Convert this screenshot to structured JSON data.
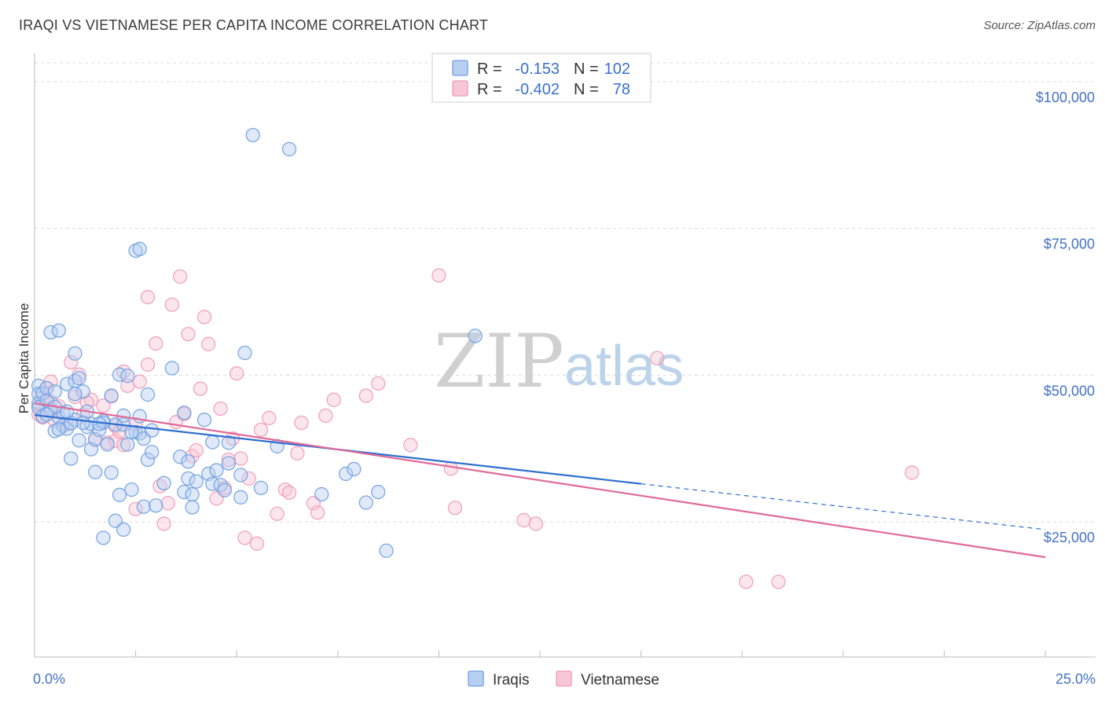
{
  "title": "IRAQI VS VIETNAMESE PER CAPITA INCOME CORRELATION CHART",
  "source": "Source: ZipAtlas.com",
  "watermark": {
    "zip": "ZIP",
    "atlas": "atlas"
  },
  "colors": {
    "iraqis": "#6fa0e0",
    "iraqis_fill": "#b7cff1",
    "iraqis_line": "#2f6fd0",
    "vietnamese": "#ef9ab8",
    "vietnamese_fill": "#f7c7d7",
    "vietnamese_line": "#e06a97",
    "grid": "#dcdcdc",
    "axis_label": "#4472c4"
  },
  "legend": {
    "rows": [
      {
        "r_label": "R =",
        "r_value": "-0.153",
        "n_label": "N =",
        "n_value": "102"
      },
      {
        "r_label": "R =",
        "r_value": "-0.402",
        "n_label": "N =",
        "n_value": "78"
      }
    ]
  },
  "chart_data": {
    "type": "scatter",
    "title": "IRAQI VS VIETNAMESE PER CAPITA INCOME CORRELATION CHART",
    "xlabel": "",
    "ylabel": "Per Capita Income",
    "xlim": [
      0,
      25
    ],
    "ylim": [
      2000,
      104000
    ],
    "x_tick_labels": {
      "min": "0.0%",
      "max": "25.0%"
    },
    "y_ticks": [
      {
        "value": 25000,
        "label": "$25,000"
      },
      {
        "value": 50000,
        "label": "$50,000"
      },
      {
        "value": 75000,
        "label": "$75,000"
      },
      {
        "value": 100000,
        "label": "$100,000"
      }
    ],
    "grid": true,
    "series": [
      {
        "name": "Iraqis",
        "trend": {
          "x0": 0,
          "y0": 43200,
          "x1": 15,
          "y1": 31500,
          "dash_to_x": 25,
          "dash_to_y": 23700
        },
        "points": [
          [
            0.1,
            48200
          ],
          [
            0.1,
            46800
          ],
          [
            0.1,
            45200
          ],
          [
            0.1,
            44500
          ],
          [
            0.2,
            46900
          ],
          [
            0.2,
            43000
          ],
          [
            0.3,
            45700
          ],
          [
            0.3,
            47800
          ],
          [
            0.4,
            44100
          ],
          [
            0.4,
            57300
          ],
          [
            0.5,
            47200
          ],
          [
            0.5,
            40500
          ],
          [
            0.6,
            57600
          ],
          [
            0.6,
            42800
          ],
          [
            0.7,
            43600
          ],
          [
            0.7,
            41400
          ],
          [
            0.8,
            40900
          ],
          [
            0.8,
            48500
          ],
          [
            0.9,
            35800
          ],
          [
            1.0,
            53700
          ],
          [
            1.0,
            42400
          ],
          [
            1.0,
            49000
          ],
          [
            1.1,
            49500
          ],
          [
            1.1,
            38900
          ],
          [
            1.2,
            47200
          ],
          [
            1.3,
            41200
          ],
          [
            1.3,
            43800
          ],
          [
            1.4,
            41700
          ],
          [
            1.4,
            37400
          ],
          [
            1.5,
            33500
          ],
          [
            1.5,
            39100
          ],
          [
            1.6,
            40700
          ],
          [
            1.7,
            42200
          ],
          [
            1.7,
            22300
          ],
          [
            1.7,
            41900
          ],
          [
            1.8,
            38200
          ],
          [
            1.9,
            46500
          ],
          [
            1.9,
            33400
          ],
          [
            2.0,
            41600
          ],
          [
            2.0,
            25200
          ],
          [
            2.1,
            29600
          ],
          [
            2.1,
            50100
          ],
          [
            2.2,
            41600
          ],
          [
            2.2,
            43100
          ],
          [
            2.2,
            23700
          ],
          [
            2.3,
            49900
          ],
          [
            2.3,
            38200
          ],
          [
            2.4,
            30500
          ],
          [
            2.5,
            71200
          ],
          [
            2.5,
            40300
          ],
          [
            2.6,
            71500
          ],
          [
            2.6,
            40100
          ],
          [
            2.6,
            43000
          ],
          [
            2.7,
            39200
          ],
          [
            2.7,
            27600
          ],
          [
            2.8,
            46700
          ],
          [
            2.8,
            35600
          ],
          [
            2.9,
            40600
          ],
          [
            2.9,
            36900
          ],
          [
            3.0,
            27800
          ],
          [
            3.2,
            31600
          ],
          [
            3.4,
            51200
          ],
          [
            3.6,
            36100
          ],
          [
            3.7,
            30100
          ],
          [
            3.7,
            43600
          ],
          [
            3.8,
            32400
          ],
          [
            3.8,
            35300
          ],
          [
            3.9,
            29700
          ],
          [
            3.9,
            27500
          ],
          [
            4.0,
            31900
          ],
          [
            4.2,
            42400
          ],
          [
            4.3,
            33200
          ],
          [
            4.4,
            31500
          ],
          [
            4.4,
            38600
          ],
          [
            4.5,
            33800
          ],
          [
            4.6,
            31300
          ],
          [
            4.7,
            30400
          ],
          [
            4.8,
            38500
          ],
          [
            4.8,
            35000
          ],
          [
            5.1,
            29200
          ],
          [
            5.1,
            33000
          ],
          [
            5.2,
            53800
          ],
          [
            5.4,
            90900
          ],
          [
            5.6,
            30800
          ],
          [
            6.0,
            37900
          ],
          [
            6.3,
            88500
          ],
          [
            7.1,
            29700
          ],
          [
            7.7,
            33200
          ],
          [
            7.9,
            34000
          ],
          [
            8.2,
            28300
          ],
          [
            8.5,
            30100
          ],
          [
            8.7,
            20100
          ],
          [
            10.9,
            56700
          ],
          [
            1.0,
            46800
          ],
          [
            0.5,
            44600
          ],
          [
            0.6,
            40800
          ],
          [
            2.4,
            40300
          ],
          [
            1.2,
            41900
          ],
          [
            0.9,
            41800
          ],
          [
            1.6,
            41700
          ],
          [
            0.3,
            43300
          ],
          [
            0.8,
            43800
          ]
        ]
      },
      {
        "name": "Vietnamese",
        "trend": {
          "x0": 0,
          "y0": 45200,
          "x1": 25,
          "y1": 19000
        },
        "points": [
          [
            0.1,
            44600
          ],
          [
            0.1,
            43300
          ],
          [
            0.2,
            46100
          ],
          [
            0.2,
            42800
          ],
          [
            0.3,
            47800
          ],
          [
            0.4,
            48900
          ],
          [
            0.4,
            45500
          ],
          [
            0.5,
            42200
          ],
          [
            0.6,
            44700
          ],
          [
            0.8,
            41700
          ],
          [
            0.9,
            52200
          ],
          [
            1.0,
            46300
          ],
          [
            1.1,
            50100
          ],
          [
            1.2,
            43200
          ],
          [
            1.4,
            45800
          ],
          [
            1.5,
            39000
          ],
          [
            1.7,
            44800
          ],
          [
            1.8,
            38500
          ],
          [
            1.9,
            46400
          ],
          [
            2.0,
            38800
          ],
          [
            2.0,
            41300
          ],
          [
            2.1,
            40400
          ],
          [
            2.2,
            50600
          ],
          [
            2.2,
            38100
          ],
          [
            2.3,
            48200
          ],
          [
            2.5,
            27200
          ],
          [
            2.5,
            41600
          ],
          [
            2.6,
            48900
          ],
          [
            2.8,
            51800
          ],
          [
            2.8,
            63300
          ],
          [
            3.0,
            55400
          ],
          [
            3.1,
            31100
          ],
          [
            3.2,
            24700
          ],
          [
            3.3,
            28200
          ],
          [
            3.4,
            62000
          ],
          [
            3.5,
            42000
          ],
          [
            3.6,
            66800
          ],
          [
            3.7,
            43400
          ],
          [
            3.8,
            57000
          ],
          [
            3.9,
            36200
          ],
          [
            4.0,
            37200
          ],
          [
            4.1,
            47700
          ],
          [
            4.2,
            59900
          ],
          [
            4.3,
            55300
          ],
          [
            4.5,
            29000
          ],
          [
            4.6,
            44300
          ],
          [
            4.7,
            30800
          ],
          [
            4.8,
            35600
          ],
          [
            4.9,
            39200
          ],
          [
            5.0,
            50300
          ],
          [
            5.1,
            35800
          ],
          [
            5.2,
            22300
          ],
          [
            5.3,
            32400
          ],
          [
            5.5,
            21300
          ],
          [
            5.6,
            40700
          ],
          [
            5.8,
            42700
          ],
          [
            6.0,
            26400
          ],
          [
            6.2,
            30500
          ],
          [
            6.3,
            30000
          ],
          [
            6.5,
            36700
          ],
          [
            6.6,
            41900
          ],
          [
            6.9,
            28200
          ],
          [
            7.0,
            26600
          ],
          [
            7.2,
            43100
          ],
          [
            7.4,
            45800
          ],
          [
            8.2,
            46500
          ],
          [
            8.5,
            48600
          ],
          [
            9.3,
            38100
          ],
          [
            10.0,
            67000
          ],
          [
            10.3,
            34100
          ],
          [
            10.4,
            27400
          ],
          [
            12.1,
            25300
          ],
          [
            12.4,
            24700
          ],
          [
            15.4,
            52900
          ],
          [
            17.6,
            14800
          ],
          [
            18.4,
            14800
          ],
          [
            21.7,
            33400
          ],
          [
            1.3,
            45300
          ]
        ]
      }
    ]
  },
  "bottom_legend": [
    "Iraqis",
    "Vietnamese"
  ]
}
